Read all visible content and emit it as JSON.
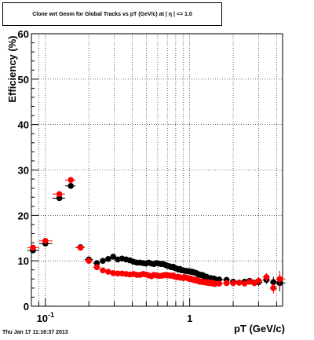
{
  "title": "Clone wrt Geom for Global Tracks vs pT (GeV/c) at | η | <= 1.0",
  "timestamp": "Thu Jan 17 11:16:37 2013",
  "chart_data": {
    "type": "scatter",
    "title": "Clone wrt Geom for Global Tracks vs pT (GeV/c) at | η | <= 1.0",
    "xlabel": "pT (GeV/c)",
    "ylabel": "Efficiency (%)",
    "x_scale": "log",
    "xlim": [
      0.08,
      4.4
    ],
    "ylim": [
      0,
      60
    ],
    "yticks": [
      0,
      10,
      20,
      30,
      40,
      50,
      60
    ],
    "xtick_labels": [
      {
        "value": 0.1,
        "base": "10",
        "exp": "-1"
      },
      {
        "value": 1,
        "base": "1",
        "exp": ""
      }
    ],
    "grid": true,
    "colors": {
      "black": "#000000",
      "red": "#ff0000"
    },
    "series": [
      {
        "color": "#000000",
        "x": [
          0.082,
          0.1,
          0.125,
          0.15,
          0.175,
          0.2,
          0.2275,
          0.25,
          0.2725,
          0.295,
          0.3175,
          0.34,
          0.3625,
          0.385,
          0.4075,
          0.43,
          0.4525,
          0.475,
          0.4975,
          0.52,
          0.5425,
          0.565,
          0.5875,
          0.61,
          0.6325,
          0.655,
          0.6775,
          0.7,
          0.7225,
          0.745,
          0.7675,
          0.79,
          0.8125,
          0.835,
          0.8575,
          0.88,
          0.9025,
          0.925,
          0.9475,
          0.97,
          0.9925,
          1.015,
          1.0375,
          1.06,
          1.0825,
          1.105,
          1.1275,
          1.15,
          1.1725,
          1.195,
          1.2175,
          1.24,
          1.2625,
          1.285,
          1.3075,
          1.33,
          1.3525,
          1.375,
          1.3975,
          1.42,
          1.4425,
          1.465,
          1.4875,
          1.6,
          1.8,
          2.0,
          2.2,
          2.4,
          2.6,
          2.8,
          3.0,
          3.4,
          3.8,
          4.2
        ],
        "y": [
          12.3,
          13.8,
          23.8,
          26.5,
          13.0,
          10.3,
          9.5,
          10.0,
          10.4,
          10.9,
          10.3,
          10.5,
          10.3,
          10.1,
          9.8,
          9.6,
          9.6,
          9.5,
          9.4,
          9.6,
          9.4,
          9.3,
          9.5,
          9.4,
          9.3,
          9.3,
          9.1,
          8.9,
          8.8,
          8.6,
          8.7,
          8.4,
          8.3,
          8.1,
          8.2,
          7.9,
          7.9,
          7.8,
          7.8,
          7.7,
          7.7,
          7.6,
          7.6,
          7.5,
          7.4,
          7.3,
          7.2,
          7.0,
          6.9,
          6.9,
          6.9,
          6.8,
          6.6,
          6.4,
          6.5,
          6.2,
          6.2,
          6.1,
          6.2,
          6.0,
          5.8,
          6.1,
          6.0,
          5.9,
          5.8,
          5.4,
          5.2,
          5.4,
          5.6,
          5.2,
          5.3,
          5.8,
          5.3,
          5.1
        ],
        "yerr": [
          0.5,
          0.4,
          0.4,
          0.4,
          0.4,
          0.3,
          0.3,
          0.3,
          0.3,
          0.3,
          0.3,
          0.3,
          0.3,
          0.3,
          0.3,
          0.3,
          0.3,
          0.3,
          0.3,
          0.3,
          0.3,
          0.3,
          0.3,
          0.3,
          0.3,
          0.3,
          0.3,
          0.3,
          0.3,
          0.3,
          0.3,
          0.3,
          0.3,
          0.3,
          0.3,
          0.3,
          0.3,
          0.3,
          0.3,
          0.3,
          0.3,
          0.3,
          0.3,
          0.3,
          0.3,
          0.3,
          0.3,
          0.3,
          0.3,
          0.3,
          0.3,
          0.3,
          0.3,
          0.3,
          0.3,
          0.3,
          0.3,
          0.3,
          0.3,
          0.3,
          0.3,
          0.3,
          0.3,
          0.4,
          0.4,
          0.4,
          0.5,
          0.5,
          0.6,
          0.7,
          0.8,
          0.9,
          1.2,
          1.8
        ]
      },
      {
        "color": "#ff0000",
        "x": [
          0.082,
          0.1,
          0.125,
          0.15,
          0.175,
          0.2,
          0.2275,
          0.25,
          0.2725,
          0.295,
          0.3175,
          0.34,
          0.3625,
          0.385,
          0.4075,
          0.43,
          0.4525,
          0.475,
          0.4975,
          0.52,
          0.5425,
          0.565,
          0.5875,
          0.61,
          0.6325,
          0.655,
          0.6775,
          0.7,
          0.7225,
          0.745,
          0.7675,
          0.79,
          0.8125,
          0.835,
          0.8575,
          0.88,
          0.9025,
          0.925,
          0.9475,
          0.97,
          0.9925,
          1.015,
          1.0375,
          1.06,
          1.0825,
          1.105,
          1.1275,
          1.15,
          1.1725,
          1.195,
          1.2175,
          1.24,
          1.2625,
          1.285,
          1.3075,
          1.33,
          1.3525,
          1.375,
          1.3975,
          1.42,
          1.4425,
          1.465,
          1.4875,
          1.6,
          1.8,
          2.0,
          2.2,
          2.4,
          2.6,
          2.8,
          3.0,
          3.4,
          3.8,
          4.2
        ],
        "y": [
          12.9,
          14.4,
          24.7,
          27.8,
          12.9,
          10.0,
          8.6,
          7.9,
          7.6,
          7.3,
          7.2,
          7.2,
          7.1,
          7.0,
          7.1,
          6.9,
          6.9,
          7.1,
          7.0,
          6.8,
          6.6,
          6.9,
          6.8,
          6.7,
          6.7,
          6.8,
          6.9,
          6.8,
          6.8,
          6.7,
          6.8,
          6.5,
          6.4,
          6.5,
          6.3,
          6.3,
          6.2,
          6.4,
          6.3,
          6.2,
          6.0,
          6.1,
          5.9,
          5.9,
          5.7,
          5.8,
          5.6,
          5.6,
          5.4,
          5.5,
          5.4,
          5.3,
          5.3,
          5.3,
          5.2,
          5.3,
          5.1,
          5.2,
          5.1,
          5.2,
          5.0,
          5.1,
          4.9,
          5.0,
          5.1,
          5.1,
          5.2,
          5.0,
          5.4,
          5.1,
          5.6,
          6.4,
          4.0,
          6.0
        ],
        "yerr": [
          0.5,
          0.4,
          0.4,
          0.4,
          0.4,
          0.3,
          0.3,
          0.3,
          0.3,
          0.3,
          0.3,
          0.3,
          0.3,
          0.3,
          0.3,
          0.3,
          0.3,
          0.3,
          0.3,
          0.3,
          0.3,
          0.3,
          0.3,
          0.3,
          0.3,
          0.3,
          0.3,
          0.3,
          0.3,
          0.3,
          0.3,
          0.3,
          0.3,
          0.3,
          0.3,
          0.3,
          0.3,
          0.3,
          0.3,
          0.3,
          0.3,
          0.3,
          0.3,
          0.3,
          0.3,
          0.3,
          0.3,
          0.3,
          0.3,
          0.3,
          0.3,
          0.3,
          0.3,
          0.3,
          0.3,
          0.3,
          0.3,
          0.3,
          0.3,
          0.3,
          0.3,
          0.3,
          0.3,
          0.4,
          0.4,
          0.4,
          0.5,
          0.5,
          0.6,
          0.7,
          0.8,
          0.9,
          1.2,
          1.8
        ]
      }
    ]
  }
}
